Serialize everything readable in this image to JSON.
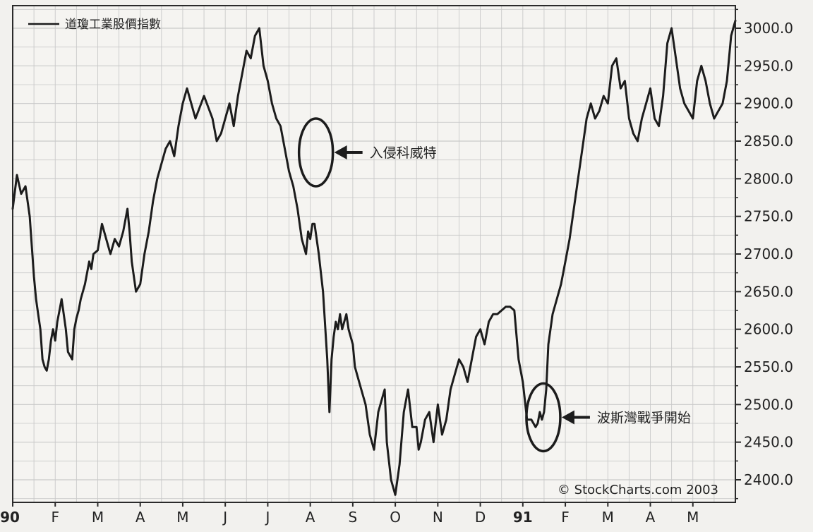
{
  "chart_data": {
    "type": "line",
    "title": "",
    "xlabel": "",
    "ylabel": "",
    "legend": {
      "label": "道瓊工業股價指數",
      "position": "top-left"
    },
    "ylim": [
      2370,
      3030
    ],
    "y_ticks": [
      {
        "value": 3000,
        "label": "3000.0"
      },
      {
        "value": 2950,
        "label": "2950.0"
      },
      {
        "value": 2900,
        "label": "2900.0"
      },
      {
        "value": 2850,
        "label": "2850.0"
      },
      {
        "value": 2800,
        "label": "2800.0"
      },
      {
        "value": 2750,
        "label": "2750.0"
      },
      {
        "value": 2700,
        "label": "2700.0"
      },
      {
        "value": 2650,
        "label": "2650.0"
      },
      {
        "value": 2600,
        "label": "2600.0"
      },
      {
        "value": 2550,
        "label": "2550.0"
      },
      {
        "value": 2500,
        "label": "2500.0"
      },
      {
        "value": 2450,
        "label": "2450.0"
      },
      {
        "value": 2400,
        "label": "2400.0"
      }
    ],
    "x_ticks": [
      {
        "label": "90",
        "month": 0,
        "bold": true
      },
      {
        "label": "F",
        "month": 1
      },
      {
        "label": "M",
        "month": 2
      },
      {
        "label": "A",
        "month": 3
      },
      {
        "label": "M",
        "month": 4
      },
      {
        "label": "J",
        "month": 5
      },
      {
        "label": "J",
        "month": 6
      },
      {
        "label": "A",
        "month": 7
      },
      {
        "label": "S",
        "month": 8
      },
      {
        "label": "O",
        "month": 9
      },
      {
        "label": "N",
        "month": 10
      },
      {
        "label": "D",
        "month": 11
      },
      {
        "label": "91",
        "month": 12,
        "bold": true
      },
      {
        "label": "F",
        "month": 13
      },
      {
        "label": "M",
        "month": 14
      },
      {
        "label": "A",
        "month": 15
      },
      {
        "label": "M",
        "month": 16
      }
    ],
    "series": [
      {
        "name": "道瓊工業股價指數",
        "x_unit": "months since Jan 1990",
        "x": [
          0,
          0.1,
          0.2,
          0.3,
          0.4,
          0.5,
          0.55,
          0.6,
          0.65,
          0.7,
          0.75,
          0.8,
          0.85,
          0.9,
          0.95,
          1.0,
          1.05,
          1.1,
          1.15,
          1.2,
          1.25,
          1.3,
          1.35,
          1.4,
          1.45,
          1.5,
          1.55,
          1.6,
          1.7,
          1.8,
          1.85,
          1.9,
          2.0,
          2.1,
          2.2,
          2.3,
          2.4,
          2.5,
          2.6,
          2.7,
          2.75,
          2.8,
          2.9,
          3.0,
          3.1,
          3.2,
          3.3,
          3.4,
          3.5,
          3.6,
          3.7,
          3.8,
          3.9,
          4.0,
          4.1,
          4.2,
          4.3,
          4.5,
          4.7,
          4.8,
          4.9,
          5.0,
          5.1,
          5.2,
          5.3,
          5.4,
          5.5,
          5.6,
          5.7,
          5.8,
          5.9,
          6.0,
          6.1,
          6.2,
          6.3,
          6.4,
          6.5,
          6.6,
          6.7,
          6.8,
          6.9,
          6.95,
          7.0,
          7.05,
          7.1,
          7.2,
          7.3,
          7.4,
          7.45,
          7.5,
          7.55,
          7.6,
          7.65,
          7.7,
          7.75,
          7.8,
          7.85,
          7.9,
          7.95,
          8.0,
          8.05,
          8.1,
          8.2,
          8.3,
          8.4,
          8.5,
          8.6,
          8.7,
          8.75,
          8.8,
          8.9,
          9.0,
          9.1,
          9.2,
          9.3,
          9.4,
          9.5,
          9.55,
          9.6,
          9.7,
          9.8,
          9.9,
          10.0,
          10.1,
          10.2,
          10.3,
          10.4,
          10.5,
          10.6,
          10.7,
          10.8,
          10.9,
          11.0,
          11.1,
          11.2,
          11.3,
          11.4,
          11.5,
          11.6,
          11.7,
          11.8,
          11.9,
          12.0,
          12.1,
          12.2,
          12.3,
          12.35,
          12.4,
          12.45,
          12.5,
          12.55,
          12.6,
          12.7,
          12.8,
          12.9,
          13.0,
          13.1,
          13.2,
          13.3,
          13.4,
          13.5,
          13.6,
          13.7,
          13.8,
          13.9,
          14.0,
          14.1,
          14.2,
          14.3,
          14.4,
          14.5,
          14.6,
          14.7,
          14.8,
          14.9,
          15.0,
          15.1,
          15.2,
          15.3,
          15.4,
          15.5,
          15.6,
          15.7,
          15.8,
          15.9,
          16.0,
          16.1,
          16.2,
          16.3,
          16.4,
          16.5,
          16.6,
          16.7,
          16.8,
          16.9,
          17.0
        ],
        "values": [
          2760,
          2805,
          2780,
          2790,
          2750,
          2670,
          2640,
          2620,
          2600,
          2560,
          2550,
          2545,
          2560,
          2585,
          2600,
          2585,
          2610,
          2625,
          2640,
          2620,
          2600,
          2570,
          2565,
          2560,
          2600,
          2615,
          2625,
          2640,
          2660,
          2690,
          2680,
          2700,
          2705,
          2740,
          2720,
          2700,
          2720,
          2710,
          2730,
          2760,
          2730,
          2690,
          2650,
          2660,
          2700,
          2730,
          2770,
          2800,
          2820,
          2840,
          2850,
          2830,
          2870,
          2900,
          2920,
          2900,
          2880,
          2910,
          2880,
          2850,
          2860,
          2880,
          2900,
          2870,
          2910,
          2940,
          2970,
          2960,
          2990,
          3000,
          2950,
          2930,
          2900,
          2880,
          2870,
          2840,
          2810,
          2790,
          2760,
          2720,
          2700,
          2730,
          2720,
          2740,
          2740,
          2700,
          2650,
          2560,
          2490,
          2560,
          2590,
          2610,
          2600,
          2620,
          2600,
          2610,
          2620,
          2600,
          2590,
          2580,
          2550,
          2540,
          2520,
          2500,
          2460,
          2440,
          2490,
          2510,
          2520,
          2450,
          2400,
          2380,
          2420,
          2490,
          2520,
          2470,
          2470,
          2440,
          2450,
          2480,
          2490,
          2450,
          2500,
          2460,
          2480,
          2520,
          2540,
          2560,
          2550,
          2530,
          2560,
          2590,
          2600,
          2580,
          2610,
          2620,
          2620,
          2625,
          2630,
          2630,
          2625,
          2560,
          2530,
          2480,
          2480,
          2470,
          2475,
          2490,
          2480,
          2490,
          2520,
          2580,
          2620,
          2640,
          2660,
          2690,
          2720,
          2760,
          2800,
          2840,
          2880,
          2900,
          2880,
          2890,
          2910,
          2900,
          2950,
          2960,
          2920,
          2930,
          2880,
          2860,
          2850,
          2880,
          2900,
          2920,
          2880,
          2870,
          2910,
          2980,
          3000,
          2960,
          2920,
          2900,
          2890,
          2880,
          2930,
          2950,
          2930,
          2900,
          2880,
          2890,
          2900,
          2930,
          2990,
          3010
        ]
      }
    ],
    "annotations": [
      {
        "text": "入侵科威特",
        "x": 7.1,
        "y": 2835
      },
      {
        "text": "波斯灣戰爭開始",
        "x": 12.45,
        "y": 2483
      }
    ],
    "grid": true,
    "grid_minor_per_label": 2
  },
  "copyright": "© StockCharts.com 2003",
  "colors": {
    "line": "#1c1c1c",
    "grid": "#c9c9c9",
    "frame": "#2b2b2b",
    "background": "#f2f1ee",
    "text": "#222222"
  }
}
